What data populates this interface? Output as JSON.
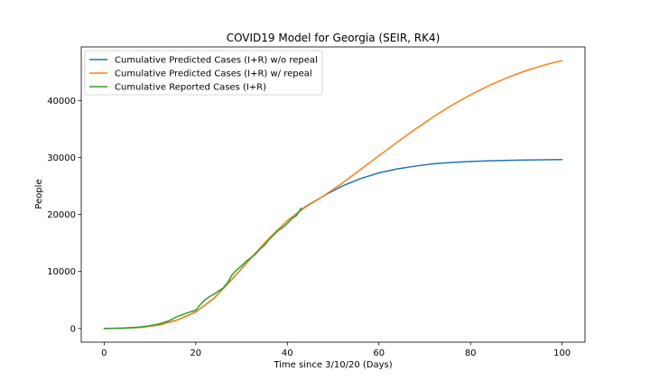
{
  "chart_data": {
    "type": "line",
    "title": "COVID19 Model for Georgia (SEIR, RK4)",
    "xlabel": "Time since 3/10/20 (Days)",
    "ylabel": "People",
    "xlim": [
      -5,
      105
    ],
    "ylim": [
      -2400,
      49400
    ],
    "xticks": [
      0,
      20,
      40,
      60,
      80,
      100
    ],
    "yticks": [
      0,
      10000,
      20000,
      30000,
      40000
    ],
    "grid": false,
    "legend_position": "top-left",
    "series": [
      {
        "name": "Cumulative Predicted Cases (I+R) w/o repeal",
        "color": "#1f77b4",
        "x": [
          0,
          4,
          8,
          12,
          16,
          20,
          24,
          28,
          32,
          36,
          40,
          44,
          48,
          52,
          56,
          60,
          64,
          68,
          72,
          76,
          80,
          84,
          88,
          92,
          96,
          100
        ],
        "y": [
          0,
          60,
          200,
          600,
          1500,
          2900,
          5300,
          8700,
          12300,
          15800,
          18900,
          21400,
          23300,
          25000,
          26300,
          27300,
          28000,
          28500,
          28900,
          29150,
          29300,
          29420,
          29500,
          29560,
          29600,
          29630
        ]
      },
      {
        "name": "Cumulative Predicted Cases (I+R) w/ repeal",
        "color": "#ff7f0e",
        "x": [
          0,
          4,
          8,
          12,
          16,
          20,
          24,
          28,
          32,
          36,
          40,
          44,
          48,
          52,
          56,
          60,
          64,
          68,
          72,
          76,
          80,
          84,
          88,
          92,
          96,
          100
        ],
        "y": [
          0,
          60,
          200,
          600,
          1500,
          2900,
          5300,
          8700,
          12300,
          15800,
          18900,
          21300,
          23300,
          25500,
          27900,
          30300,
          32700,
          35000,
          37200,
          39200,
          41000,
          42600,
          44000,
          45200,
          46200,
          47000
        ]
      },
      {
        "name": "Cumulative Reported Cases (I+R)",
        "color": "#2ca02c",
        "x": [
          0,
          2,
          4,
          6,
          8,
          10,
          12,
          14,
          16,
          18,
          20,
          21,
          22,
          23,
          24,
          25,
          26,
          27,
          28,
          29,
          30,
          31,
          32,
          33,
          34,
          35,
          36,
          37,
          38,
          39,
          40,
          41,
          42,
          43
        ],
        "y": [
          0,
          20,
          60,
          150,
          250,
          500,
          800,
          1300,
          2100,
          2700,
          3200,
          4200,
          5000,
          5600,
          6000,
          6600,
          7100,
          8100,
          9500,
          10300,
          11000,
          11800,
          12400,
          13000,
          13900,
          14600,
          15600,
          16400,
          17200,
          17700,
          18400,
          19300,
          19800,
          21100
        ]
      }
    ]
  }
}
